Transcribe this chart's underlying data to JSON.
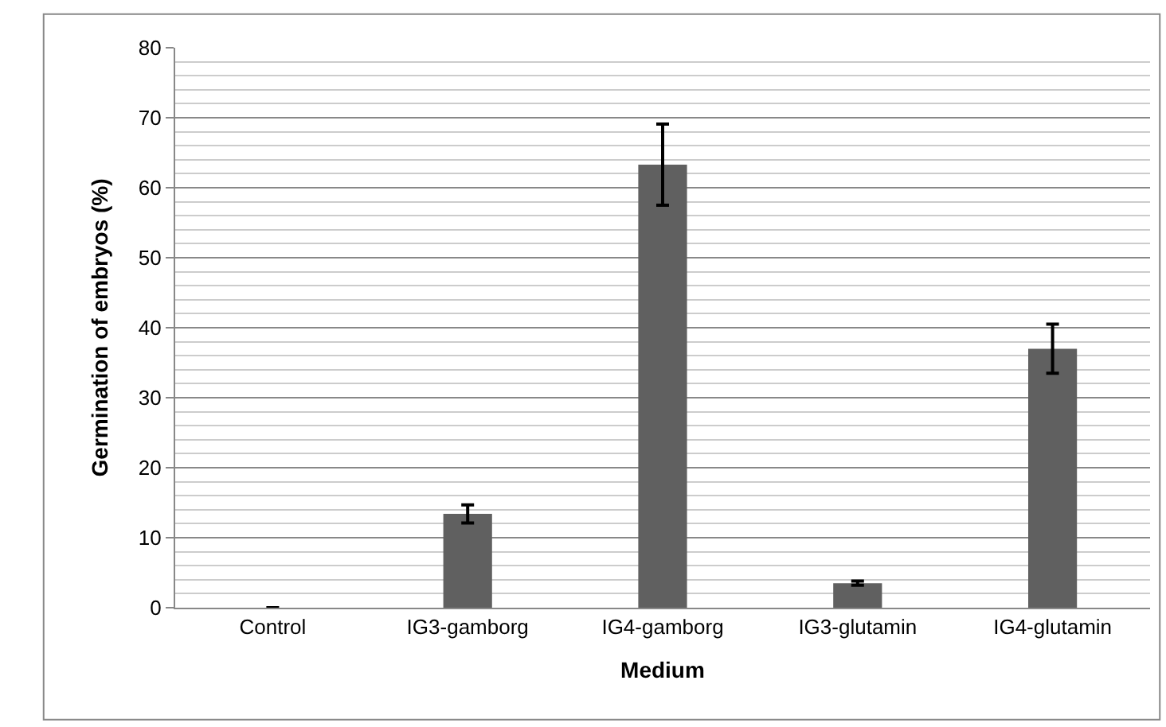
{
  "chart_data": {
    "type": "bar",
    "xlabel": "Medium",
    "ylabel": "Germination of embryos (%)",
    "categories": [
      "Control",
      "IG3-gamborg",
      "IG4-gamborg",
      "IG3-glutamin",
      "IG4-glutamin"
    ],
    "values": [
      0,
      13.4,
      63.3,
      3.5,
      37.0
    ],
    "errors": [
      null,
      1.3,
      5.8,
      0.3,
      3.5
    ],
    "color": "#606060",
    "ylim": [
      0,
      80
    ],
    "yticks": [
      0,
      10,
      20,
      30,
      40,
      50,
      60,
      70,
      80
    ],
    "grid": "y"
  }
}
